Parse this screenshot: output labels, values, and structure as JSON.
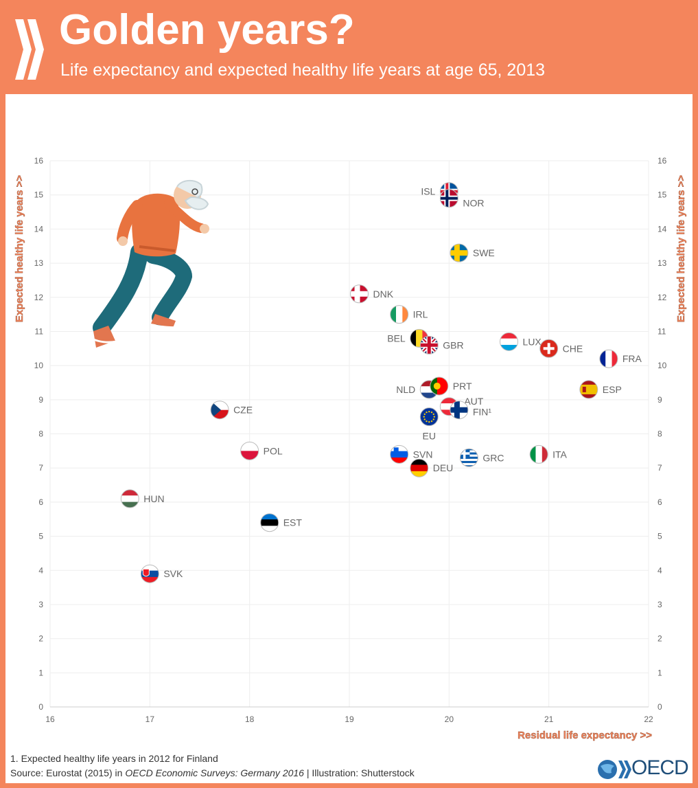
{
  "header": {
    "title": "Golden years?",
    "subtitle": "Life expectancy and expected healthy life years at age 65, 2013"
  },
  "footer": {
    "note": "1. Expected healthy life years in 2012 for Finland",
    "source_prefix": "Source: Eurostat (2015) in ",
    "source_title": "OECD Economic Surveys: Germany 2016",
    "source_suffix": " | Illustration: Shutterstock",
    "logo_text": "OECD"
  },
  "colors": {
    "header_bg": "#f4855c",
    "axis_label": "#f4855c",
    "label_text": "#666666"
  },
  "chart_data": {
    "type": "scatter",
    "xlabel": "Residual life expectancy >>",
    "ylabel": "Expected healthy life years >>",
    "xlim": [
      16,
      22
    ],
    "ylim": [
      0,
      16
    ],
    "xticks": [
      16,
      17,
      18,
      19,
      20,
      21,
      22
    ],
    "yticks": [
      0,
      1,
      2,
      3,
      4,
      5,
      6,
      7,
      8,
      9,
      10,
      11,
      12,
      13,
      14,
      15,
      16
    ],
    "grid": true,
    "points": [
      {
        "label": "ISL",
        "x": 20.0,
        "y": 15.1,
        "flag": "isl"
      },
      {
        "label": "NOR",
        "x": 20.0,
        "y": 14.9,
        "flag": "nor"
      },
      {
        "label": "SWE",
        "x": 20.1,
        "y": 13.3,
        "flag": "swe"
      },
      {
        "label": "DNK",
        "x": 19.1,
        "y": 12.1,
        "flag": "dnk"
      },
      {
        "label": "IRL",
        "x": 19.5,
        "y": 11.5,
        "flag": "irl"
      },
      {
        "label": "BEL",
        "x": 19.7,
        "y": 10.8,
        "flag": "bel"
      },
      {
        "label": "GBR",
        "x": 19.8,
        "y": 10.6,
        "flag": "gbr"
      },
      {
        "label": "LUX",
        "x": 20.6,
        "y": 10.7,
        "flag": "lux"
      },
      {
        "label": "CHE",
        "x": 21.0,
        "y": 10.5,
        "flag": "che"
      },
      {
        "label": "FRA",
        "x": 21.6,
        "y": 10.2,
        "flag": "fra"
      },
      {
        "label": "NLD",
        "x": 19.8,
        "y": 9.3,
        "flag": "nld"
      },
      {
        "label": "PRT",
        "x": 19.9,
        "y": 9.4,
        "flag": "prt"
      },
      {
        "label": "ESP",
        "x": 21.4,
        "y": 9.3,
        "flag": "esp"
      },
      {
        "label": "AUT",
        "x": 20.0,
        "y": 8.8,
        "flag": "aut"
      },
      {
        "label": "FIN¹",
        "x": 20.1,
        "y": 8.7,
        "flag": "fin"
      },
      {
        "label": "EU",
        "x": 19.8,
        "y": 8.5,
        "flag": "eu"
      },
      {
        "label": "CZE",
        "x": 17.7,
        "y": 8.7,
        "flag": "cze"
      },
      {
        "label": "POL",
        "x": 18.0,
        "y": 7.5,
        "flag": "pol"
      },
      {
        "label": "SVN",
        "x": 19.5,
        "y": 7.4,
        "flag": "svn"
      },
      {
        "label": "GRC",
        "x": 20.2,
        "y": 7.3,
        "flag": "grc"
      },
      {
        "label": "ITA",
        "x": 20.9,
        "y": 7.4,
        "flag": "ita"
      },
      {
        "label": "DEU",
        "x": 19.7,
        "y": 7.0,
        "flag": "deu"
      },
      {
        "label": "HUN",
        "x": 16.8,
        "y": 6.1,
        "flag": "hun"
      },
      {
        "label": "EST",
        "x": 18.2,
        "y": 5.4,
        "flag": "est"
      },
      {
        "label": "SVK",
        "x": 17.0,
        "y": 3.9,
        "flag": "svk"
      }
    ]
  }
}
